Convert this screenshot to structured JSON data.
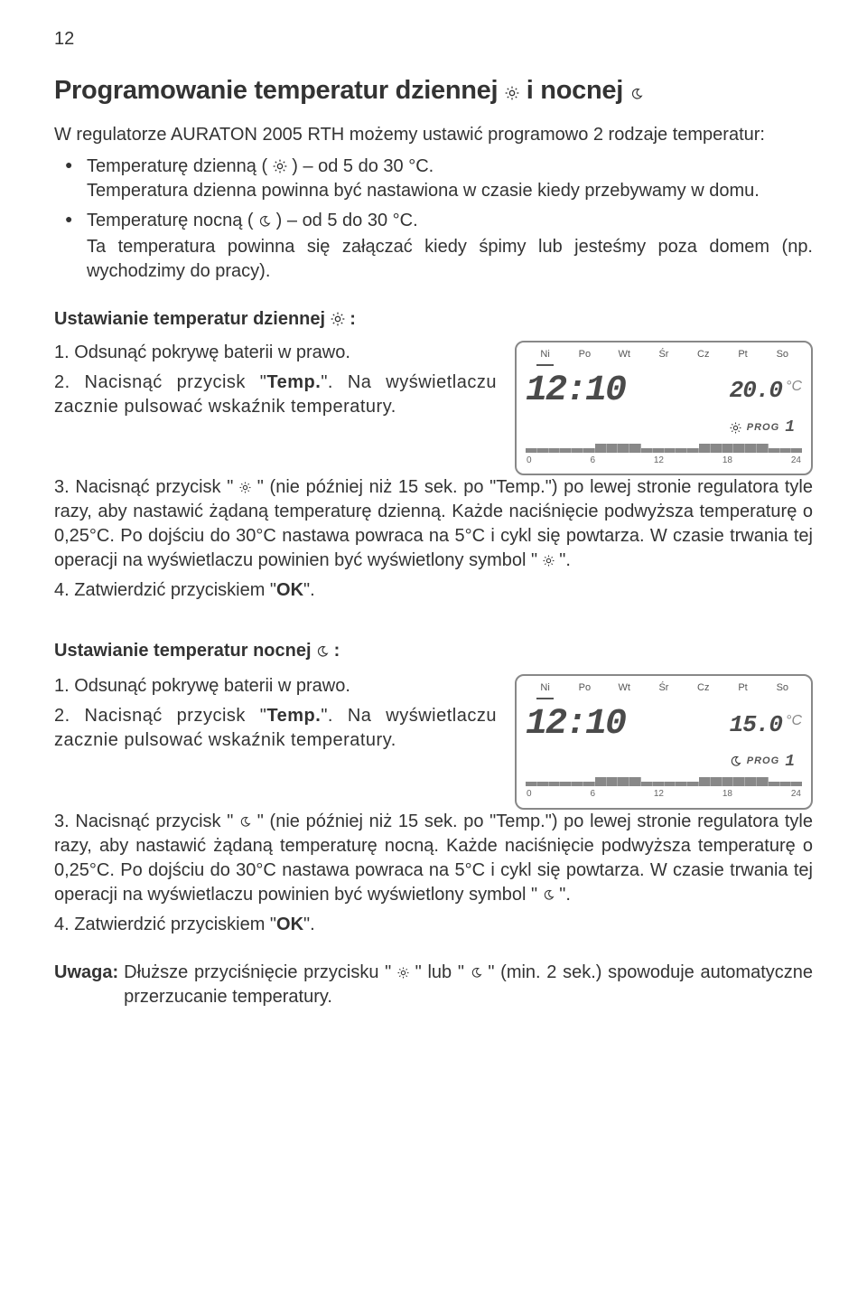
{
  "page_number": "12",
  "title_parts": [
    "Programowanie temperatur dziennej ",
    " i nocnej "
  ],
  "intro": "W regulatorze AURATON 2005 RTH możemy ustawić programowo 2 rodzaje temperatur:",
  "bullets": [
    {
      "line1_parts": [
        "Temperaturę dzienną ( ",
        " ) – od  5 do 30 °C."
      ],
      "line2": "Temperatura dzienna powinna być nastawiona w czasie kiedy przebywamy w domu."
    },
    {
      "line1_parts": [
        "Temperaturę nocną ( ",
        " ) – od 5 do 30 °C."
      ],
      "line2": "Ta temperatura powinna się załączać kiedy śpimy lub jesteśmy poza domem (np. wychodzimy do pracy)."
    }
  ],
  "section_day": {
    "heading_parts": [
      "Ustawianie temperatur dziennej ",
      " :"
    ],
    "step1": "1. Odsunąć pokrywę baterii w prawo.",
    "step2_parts": [
      "2. Nacisnąć przycisk \"",
      "Temp.",
      "\". Na wyświetlaczu zacznie pulsować wskaźnik temperatury."
    ],
    "step3_parts": [
      "3. Nacisnąć przycisk \" ",
      " \" (nie później niż 15 sek. po \"Temp.\") po lewej stronie regulatora tyle razy, aby nastawić żądaną temperaturę dzienną. Każde naciśnięcie podwyższa temperaturę o 0,25°C. Po dojściu do 30°C nastawa powraca na 5°C i cykl się powtarza. W czasie trwania tej operacji na wyświetlaczu powinien być  wyświetlony  symbol \" ",
      " \"."
    ],
    "step4_parts": [
      "4. Zatwierdzić przyciskiem \"",
      "OK",
      "\"."
    ]
  },
  "section_night": {
    "heading_parts": [
      "Ustawianie temperatur nocnej  ",
      "  :"
    ],
    "step1": "1. Odsunąć pokrywę baterii w prawo.",
    "step2_parts": [
      "2. Nacisnąć przycisk \"",
      "Temp.",
      "\". Na wyświetlaczu zacznie pulsować wskaźnik temperatury."
    ],
    "step3_parts": [
      "3. Nacisnąć przycisk \" ",
      " \" (nie później niż 15 sek. po \"Temp.\") po lewej stronie regulatora tyle razy, aby nastawić żądaną temperaturę nocną. Każde naciśnięcie podwyższa temperaturę o 0,25°C. Po dojściu do 30°C nastawa powraca na 5°C i cykl się powtarza. W czasie trwania tej operacji na wyświetlaczu powinien być  wyświetlony  symbol \" ",
      " \"."
    ],
    "step4_parts": [
      "4. Zatwierdzić przyciskiem \"",
      "OK",
      "\"."
    ]
  },
  "note": {
    "label": "Uwaga:",
    "body_parts": [
      "Dłuższe przyciśnięcie przycisku \" ",
      " \" lub \" ",
      " \" (min. 2 sek.) spowoduje automatyczne przerzucanie temperatury."
    ]
  },
  "lcd_common": {
    "days": [
      "Ni",
      "Po",
      "Wt",
      "Śr",
      "Cz",
      "Pt",
      "So"
    ],
    "selected_day_index": 0,
    "time": "12:10",
    "hours": [
      "0",
      "6",
      "12",
      "18",
      "24"
    ],
    "prog_label": "PROG",
    "prog_num": "1",
    "bar_pattern": [
      "lo",
      "lo",
      "lo",
      "lo",
      "lo",
      "lo",
      "hi",
      "hi",
      "hi",
      "hi",
      "lo",
      "lo",
      "lo",
      "lo",
      "lo",
      "hi",
      "hi",
      "hi",
      "hi",
      "hi",
      "hi",
      "lo",
      "lo",
      "lo"
    ],
    "celsius": "°C"
  },
  "lcd_day": {
    "temp": "20.0",
    "mode_icon": "sun"
  },
  "lcd_night": {
    "temp": "15.0",
    "mode_icon": "moon"
  },
  "colors": {
    "text": "#333333",
    "lcd_border": "#888888",
    "lcd_dark": "#4a4a4a",
    "lcd_light": "#888888"
  }
}
